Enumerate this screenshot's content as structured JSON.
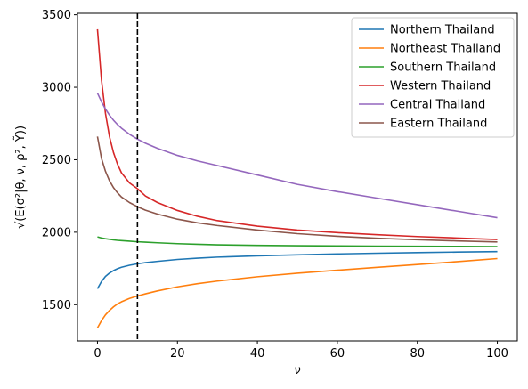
{
  "chart_data": {
    "type": "line",
    "xlabel": "ν",
    "ylabel": "√(E(σ²|θ, ν, ρ², Ỹ))",
    "xlim": [
      -5,
      105
    ],
    "ylim": [
      1250,
      3510
    ],
    "x_ticks": [
      0,
      20,
      40,
      60,
      80,
      100
    ],
    "x_tick_labels": [
      "0",
      "20",
      "40",
      "60",
      "80",
      "100"
    ],
    "y_ticks": [
      1500,
      2000,
      2500,
      3000,
      3500
    ],
    "y_tick_labels": [
      "1500",
      "2000",
      "2500",
      "3000",
      "3500"
    ],
    "grid": false,
    "legend_position": "top-right",
    "vline": {
      "x": 10,
      "style": "dashed",
      "color": "#000000"
    },
    "x": [
      0,
      1,
      2,
      3,
      4,
      5,
      6,
      8,
      10,
      12,
      15,
      20,
      25,
      30,
      40,
      50,
      60,
      70,
      80,
      90,
      100
    ],
    "series": [
      {
        "name": "Northern Thailand",
        "color": "#1f77b4",
        "values": [
          1610,
          1660,
          1695,
          1718,
          1735,
          1748,
          1758,
          1772,
          1782,
          1790,
          1799,
          1812,
          1821,
          1828,
          1837,
          1844,
          1850,
          1855,
          1859,
          1863,
          1866
        ]
      },
      {
        "name": "Northeast Thailand",
        "color": "#ff7f0e",
        "values": [
          1340,
          1390,
          1430,
          1460,
          1485,
          1505,
          1520,
          1543,
          1560,
          1575,
          1595,
          1623,
          1645,
          1663,
          1693,
          1717,
          1738,
          1758,
          1777,
          1797,
          1818
        ]
      },
      {
        "name": "Southern Thailand",
        "color": "#2ca02c",
        "values": [
          1968,
          1960,
          1955,
          1951,
          1947,
          1944,
          1942,
          1938,
          1934,
          1931,
          1927,
          1921,
          1917,
          1913,
          1909,
          1907,
          1905,
          1904,
          1903,
          1902,
          1901
        ]
      },
      {
        "name": "Western Thailand",
        "color": "#d62728",
        "values": [
          3400,
          3050,
          2820,
          2660,
          2550,
          2470,
          2410,
          2340,
          2300,
          2250,
          2205,
          2150,
          2110,
          2080,
          2042,
          2015,
          1997,
          1983,
          1970,
          1960,
          1950
        ]
      },
      {
        "name": "Central Thailand",
        "color": "#9467bd",
        "values": [
          2960,
          2900,
          2850,
          2808,
          2773,
          2743,
          2718,
          2676,
          2642,
          2614,
          2579,
          2530,
          2492,
          2460,
          2395,
          2330,
          2280,
          2235,
          2190,
          2145,
          2100
        ]
      },
      {
        "name": "Eastern Thailand",
        "color": "#8c564b",
        "values": [
          2660,
          2510,
          2420,
          2355,
          2308,
          2272,
          2243,
          2205,
          2176,
          2152,
          2125,
          2090,
          2065,
          2046,
          2015,
          1990,
          1972,
          1958,
          1948,
          1940,
          1933
        ]
      }
    ]
  }
}
